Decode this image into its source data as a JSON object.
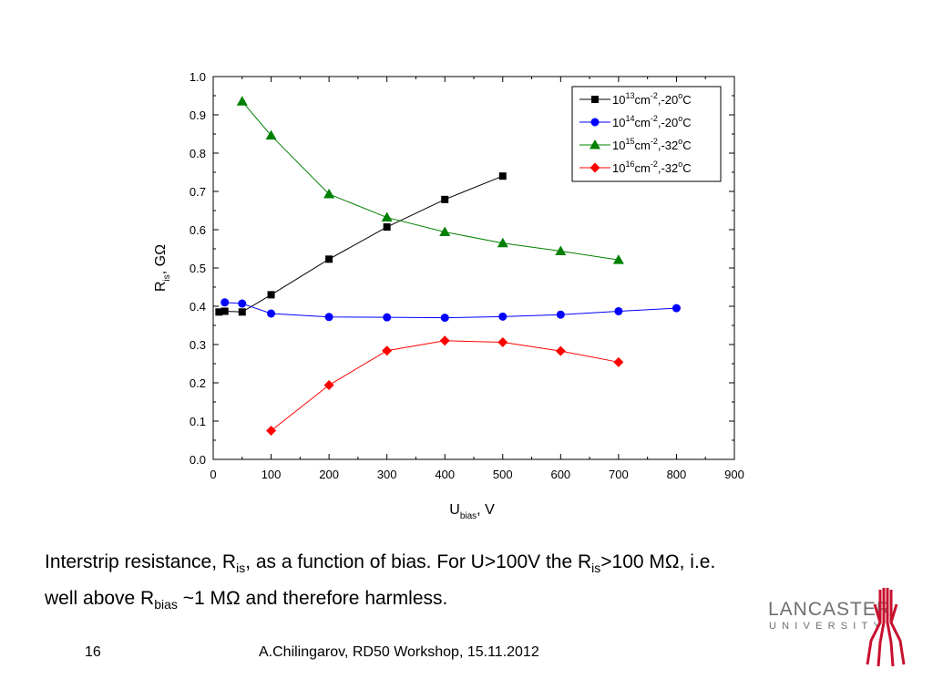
{
  "chart_data": {
    "type": "line",
    "xlabel": "U",
    "xlabel_sub": "bias",
    "xlabel_suffix": ", V",
    "ylabel": "R",
    "ylabel_sub": "is",
    "ylabel_suffix": ", GΩ",
    "xlim": [
      0,
      900
    ],
    "ylim": [
      0.0,
      1.0
    ],
    "x_ticks": [
      "0",
      "100",
      "200",
      "300",
      "400",
      "500",
      "600",
      "700",
      "800",
      "900"
    ],
    "y_ticks": [
      "0.0",
      "0.1",
      "0.2",
      "0.3",
      "0.4",
      "0.5",
      "0.6",
      "0.7",
      "0.8",
      "0.9",
      "1.0"
    ],
    "legend_position": "top-right",
    "series": [
      {
        "name": "10^13 cm^-2,-20°C",
        "legend": {
          "base": "10",
          "exp": "13",
          "unit": "cm",
          "unit_exp": "-2",
          "temp": ",-20",
          "deg": "o",
          "tail": "C"
        },
        "color": "#000000",
        "marker": "square",
        "x": [
          10,
          20,
          50,
          100,
          200,
          300,
          400,
          500
        ],
        "y": [
          0.385,
          0.387,
          0.385,
          0.43,
          0.523,
          0.607,
          0.679,
          0.74
        ]
      },
      {
        "name": "10^14 cm^-2,-20°C",
        "legend": {
          "base": "10",
          "exp": "14",
          "unit": "cm",
          "unit_exp": "-2",
          "temp": ",-20",
          "deg": "o",
          "tail": "C"
        },
        "color": "#0000ff",
        "marker": "circle",
        "x": [
          20,
          50,
          100,
          200,
          300,
          400,
          500,
          600,
          700,
          800
        ],
        "y": [
          0.41,
          0.407,
          0.381,
          0.372,
          0.371,
          0.37,
          0.373,
          0.378,
          0.387,
          0.395
        ]
      },
      {
        "name": "10^15 cm^-2,-32°C",
        "legend": {
          "base": "10",
          "exp": "15",
          "unit": "cm",
          "unit_exp": "-2",
          "temp": ",-32",
          "deg": "o",
          "tail": "C"
        },
        "color": "#008000",
        "marker": "triangle",
        "x": [
          50,
          100,
          200,
          300,
          400,
          500,
          600,
          700
        ],
        "y": [
          0.935,
          0.846,
          0.693,
          0.632,
          0.594,
          0.565,
          0.544,
          0.521
        ]
      },
      {
        "name": "10^16 cm^-2,-32°C",
        "legend": {
          "base": "10",
          "exp": "16",
          "unit": "cm",
          "unit_exp": "-2",
          "temp": ",-32",
          "deg": "o",
          "tail": "C"
        },
        "color": "#ff0000",
        "marker": "diamond",
        "x": [
          100,
          200,
          300,
          400,
          500,
          600,
          700
        ],
        "y": [
          0.075,
          0.194,
          0.284,
          0.31,
          0.306,
          0.283,
          0.254
        ]
      }
    ]
  },
  "caption": {
    "line1_a": "Interstrip resistance, R",
    "line1_sub1": "is",
    "line1_b": ", as a function of bias. For U>100V the R",
    "line1_sub2": "is",
    "line1_c": ">100 MΩ, i.e.",
    "line2_a": "well above R",
    "line2_sub": "bias",
    "line2_b": " ~1 MΩ and therefore harmless."
  },
  "footer": {
    "page_number": "16",
    "text": "A.Chilingarov, RD50 Workshop,  15.11.2012"
  },
  "logo": {
    "name": "LANCASTER",
    "subtitle": "UNIVERSITY",
    "color": "#c8102e"
  }
}
